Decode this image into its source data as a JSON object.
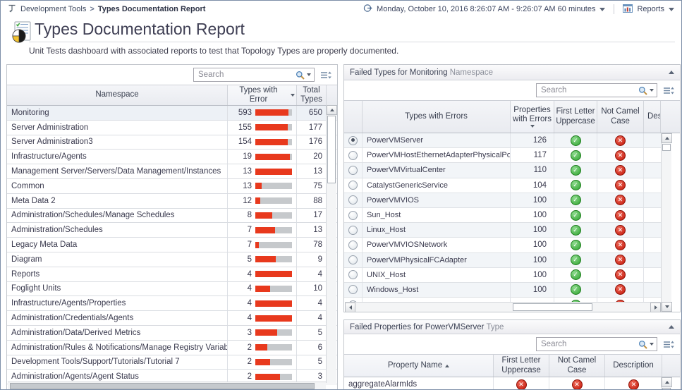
{
  "topbar": {
    "breadcrumb": {
      "items": [
        "Development Tools",
        "Types Documentation Report"
      ],
      "separator": ">"
    },
    "time_range_label": "Monday, October 10, 2016 8:26:07 AM - 9:26:07 AM 60 minutes",
    "reports_label": "Reports"
  },
  "header": {
    "title": "Types Documentation Report",
    "subtitle": "Unit Tests dashboard with associated reports to test that Topology Types are properly documented."
  },
  "namespace_panel": {
    "search_placeholder": "Search",
    "columns": [
      "Namespace",
      "Types with Error",
      "Total Types"
    ],
    "sort": {
      "column": "Types with Error",
      "direction": "desc"
    },
    "rows": [
      {
        "namespace": "Monitoring",
        "types_with_error": 593,
        "total_types": 650,
        "selected": true
      },
      {
        "namespace": "Server Administration",
        "types_with_error": 155,
        "total_types": 177
      },
      {
        "namespace": "Server Administration3",
        "types_with_error": 154,
        "total_types": 176
      },
      {
        "namespace": "Infrastructure/Agents",
        "types_with_error": 19,
        "total_types": 20
      },
      {
        "namespace": "Management Server/Servers/Data Management/Instances",
        "types_with_error": 13,
        "total_types": 13
      },
      {
        "namespace": "Common",
        "types_with_error": 13,
        "total_types": 75
      },
      {
        "namespace": "Meta Data 2",
        "types_with_error": 12,
        "total_types": 88
      },
      {
        "namespace": "Administration/Schedules/Manage Schedules",
        "types_with_error": 8,
        "total_types": 17
      },
      {
        "namespace": "Administration/Schedules",
        "types_with_error": 7,
        "total_types": 13
      },
      {
        "namespace": "Legacy Meta Data",
        "types_with_error": 7,
        "total_types": 78
      },
      {
        "namespace": "Diagram",
        "types_with_error": 5,
        "total_types": 9
      },
      {
        "namespace": "Reports",
        "types_with_error": 4,
        "total_types": 4
      },
      {
        "namespace": "Foglight Units",
        "types_with_error": 4,
        "total_types": 10
      },
      {
        "namespace": "Infrastructure/Agents/Properties",
        "types_with_error": 4,
        "total_types": 4
      },
      {
        "namespace": "Administration/Credentials/Agents",
        "types_with_error": 4,
        "total_types": 4
      },
      {
        "namespace": "Administration/Data/Derived Metrics",
        "types_with_error": 3,
        "total_types": 5
      },
      {
        "namespace": "Administration/Rules & Notifications/Manage Registry Variables",
        "types_with_error": 2,
        "total_types": 6
      },
      {
        "namespace": "Development Tools/Support/Tutorials/Tutorial 7",
        "types_with_error": 2,
        "total_types": 5
      },
      {
        "namespace": "Administration/Agents/Agent Status",
        "types_with_error": 2,
        "total_types": 3
      }
    ]
  },
  "failed_types_panel": {
    "title_main": "Failed Types for Monitoring",
    "title_suffix": "Namespace",
    "search_placeholder": "Search",
    "columns": [
      "Types with Errors",
      "Properties with Errors",
      "First Letter Uppercase",
      "Not Camel Case",
      "Description"
    ],
    "sort": {
      "column": "Properties with Errors",
      "direction": "desc"
    },
    "rows": [
      {
        "name": "PowerVMServer",
        "properties_with_errors": 126,
        "first_letter_uppercase": "pass",
        "not_camel_case": "fail",
        "selected": true
      },
      {
        "name": "PowerVMHostEthernetAdapterPhysicalPort",
        "properties_with_errors": 117,
        "first_letter_uppercase": "pass",
        "not_camel_case": "fail"
      },
      {
        "name": "PowerVMVirtualCenter",
        "properties_with_errors": 110,
        "first_letter_uppercase": "pass",
        "not_camel_case": "fail"
      },
      {
        "name": "CatalystGenericService",
        "properties_with_errors": 104,
        "first_letter_uppercase": "pass",
        "not_camel_case": "fail"
      },
      {
        "name": "PowerVMVIOS",
        "properties_with_errors": 100,
        "first_letter_uppercase": "pass",
        "not_camel_case": "fail"
      },
      {
        "name": "Sun_Host",
        "properties_with_errors": 100,
        "first_letter_uppercase": "pass",
        "not_camel_case": "fail"
      },
      {
        "name": "Linux_Host",
        "properties_with_errors": 100,
        "first_letter_uppercase": "pass",
        "not_camel_case": "fail"
      },
      {
        "name": "PowerVMVIOSNetwork",
        "properties_with_errors": 100,
        "first_letter_uppercase": "pass",
        "not_camel_case": "fail"
      },
      {
        "name": "PowerVMPhysicalFCAdapter",
        "properties_with_errors": 100,
        "first_letter_uppercase": "pass",
        "not_camel_case": "fail"
      },
      {
        "name": "UNIX_Host",
        "properties_with_errors": 100,
        "first_letter_uppercase": "pass",
        "not_camel_case": "fail"
      },
      {
        "name": "Windows_Host",
        "properties_with_errors": 100,
        "first_letter_uppercase": "pass",
        "not_camel_case": "fail"
      },
      {
        "name": "",
        "properties_with_errors": "",
        "first_letter_uppercase": "pass",
        "not_camel_case": "fail",
        "partial": true
      }
    ]
  },
  "failed_properties_panel": {
    "title_main": "Failed Properties for PowerVMServer",
    "title_suffix": "Type",
    "search_placeholder": "Search",
    "columns": [
      "Property Name",
      "First Letter Uppercase",
      "Not Camel Case",
      "Description"
    ],
    "sort": {
      "column": "Property Name",
      "direction": "asc"
    },
    "rows": [
      {
        "name": "aggregateAlarmIds",
        "first_letter_uppercase": "fail",
        "not_camel_case": "fail",
        "description": "fail"
      }
    ]
  },
  "colors": {
    "error_bar": "#e8391d",
    "bar_track": "#c6c9cc",
    "pass_green": "#2da12d",
    "fail_red": "#c21507"
  }
}
